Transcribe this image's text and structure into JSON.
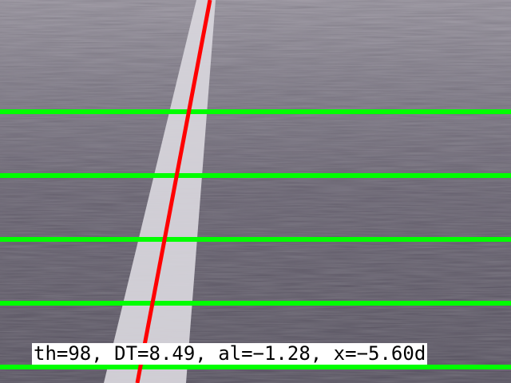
{
  "scene": {
    "description_tag": "road-lane-detection-frame",
    "road_color": "#5e5866",
    "road_far_color": "#8f8a94",
    "lane_marking_color": "#d6d4da",
    "detected_line_color": "#ff0000",
    "scan_line_color": "#00ff00",
    "scan_line_count": 5
  },
  "overlay": {
    "status_text": "th=98, DT=8.49, al=−1.28, x=−5.60d",
    "text_background": "#ffffff",
    "text_color": "#000000"
  }
}
